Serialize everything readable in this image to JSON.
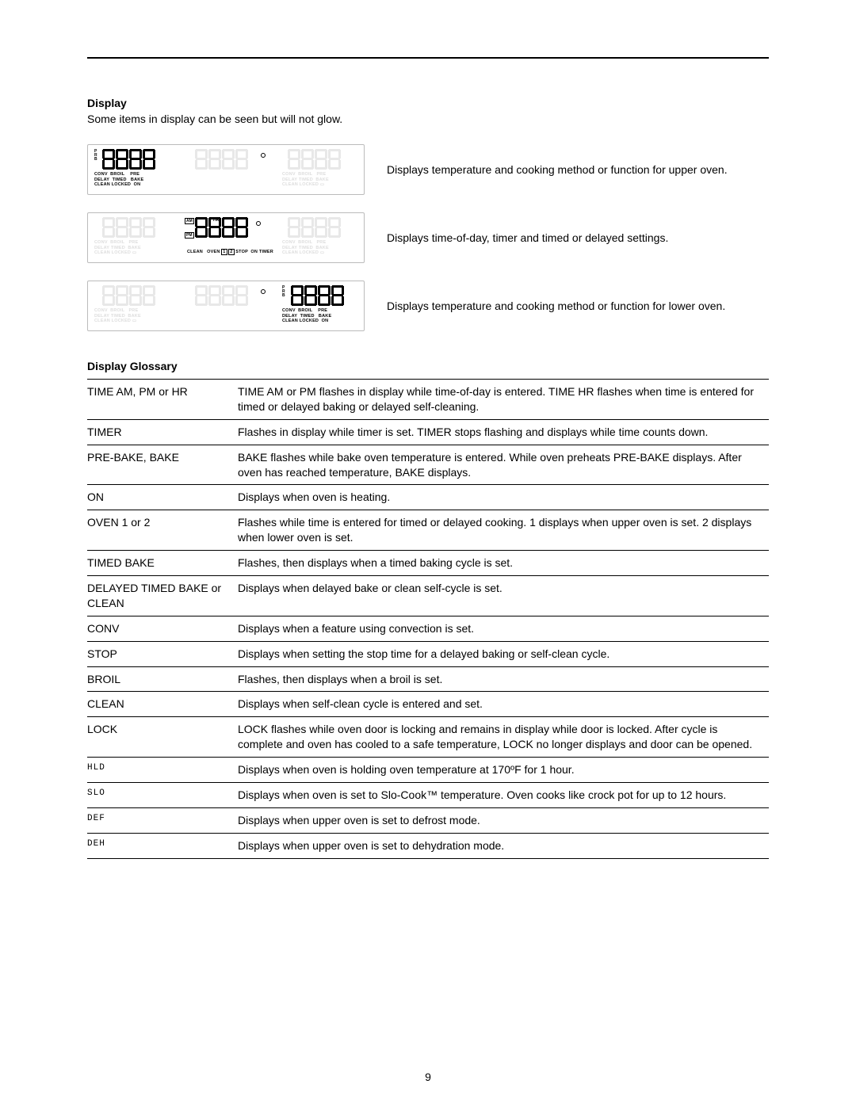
{
  "page_number": "9",
  "section_title": "Display",
  "intro_text": "Some items in display can be seen but will not glow.",
  "display_rows": [
    {
      "caption": "Displays temperature and cooking method or function for upper oven.",
      "active_panel": "left",
      "mini_labels": [
        "CONV",
        "BROIL",
        "PRE",
        "DELAY",
        "TIMED",
        "BAKE",
        "CLEAN",
        "LOCKED",
        "ON"
      ],
      "prb_labels": [
        "P",
        "R",
        "B"
      ]
    },
    {
      "caption": "Displays time-of-day, timer and timed or delayed settings.",
      "active_panel": "center",
      "am_pm_labels": [
        "AM",
        "PM",
        "HR"
      ],
      "bottom_labels": [
        "CLEAN",
        "OVEN",
        "1",
        "2",
        "STOP",
        "ON",
        "TIMER"
      ]
    },
    {
      "caption": "Displays temperature and cooking method or function for lower oven.",
      "active_panel": "right",
      "mini_labels": [
        "CONV",
        "BROIL",
        "PRE",
        "DELAY",
        "TIMED",
        "BAKE",
        "CLEAN",
        "LOCKED",
        "ON"
      ],
      "prb_labels": [
        "P",
        "R",
        "B"
      ]
    }
  ],
  "glossary_title": "Display Glossary",
  "glossary": [
    {
      "term": "TIME AM, PM or HR",
      "desc": "TIME AM or PM flashes in display while time-of-day is entered. TIME HR flashes when time is entered for timed or delayed baking or delayed self-cleaning."
    },
    {
      "term": "TIMER",
      "desc": "Flashes in display while timer is set. TIMER stops flashing and displays while time counts down."
    },
    {
      "term": "PRE-BAKE, BAKE",
      "desc": "BAKE flashes while bake oven temperature is entered. While oven preheats PRE-BAKE displays. After oven has reached temperature, BAKE displays."
    },
    {
      "term": "ON",
      "desc": "Displays when oven is heating."
    },
    {
      "term": "OVEN 1 or 2",
      "desc": "Flashes while time is entered for timed or delayed cooking. 1 displays when upper oven is set. 2 displays when lower oven is set."
    },
    {
      "term": "TIMED BAKE",
      "desc": "Flashes, then displays when a timed baking cycle is set."
    },
    {
      "term": "DELAYED TIMED BAKE or CLEAN",
      "desc": "Displays when delayed bake or clean self-cycle is set."
    },
    {
      "term": "CONV",
      "desc": "Displays when a feature using convection is set."
    },
    {
      "term": "STOP",
      "desc": "Displays when setting the stop time for a delayed baking or self-clean cycle."
    },
    {
      "term": "BROIL",
      "desc": "Flashes, then displays when a broil is set."
    },
    {
      "term": "CLEAN",
      "desc": "Displays when self-clean cycle is entered and set."
    },
    {
      "term": "LOCK",
      "desc": "LOCK flashes while oven door is locking and remains in display while door is locked. After cycle is complete and oven has cooled to a safe temperature, LOCK no longer displays and door can be opened."
    },
    {
      "term": "HLD",
      "term_style": "seg",
      "desc": "Displays when oven is holding oven temperature at 170ºF for 1 hour."
    },
    {
      "term": "SLO",
      "term_style": "seg",
      "desc": "Displays when oven is set to Slo-Cook™ temperature. Oven cooks like crock pot for up to 12 hours."
    },
    {
      "term": "DEF",
      "term_style": "seg",
      "desc": "Displays when upper oven is set to defrost mode."
    },
    {
      "term": "DEH",
      "term_style": "seg",
      "desc": "Displays when upper oven is set to dehydration mode."
    }
  ],
  "colors": {
    "text": "#000000",
    "rule": "#000000",
    "panel_border": "#bbbbbb",
    "ghost": "#e8e8e8"
  }
}
